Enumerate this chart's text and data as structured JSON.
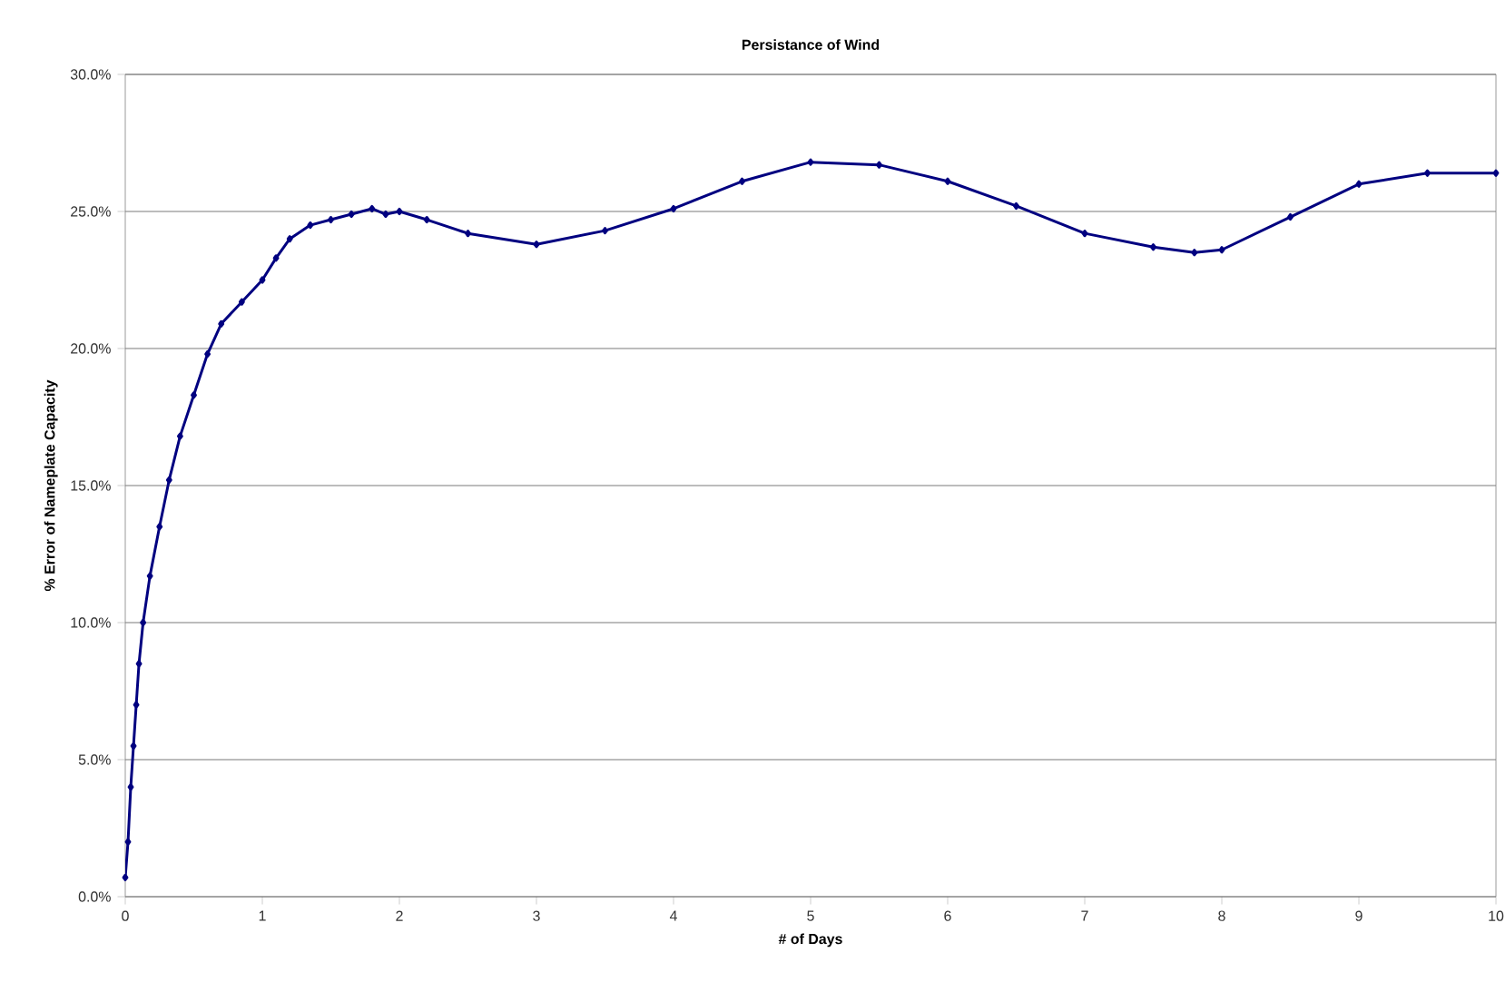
{
  "chart_data": {
    "type": "line",
    "title": "Persistance of Wind",
    "xlabel": "# of Days",
    "ylabel": "% Error of Nameplate Capacity",
    "x": [
      0,
      0.02,
      0.04,
      0.06,
      0.08,
      0.1,
      0.13,
      0.18,
      0.25,
      0.32,
      0.4,
      0.5,
      0.6,
      0.7,
      0.85,
      1.0,
      1.1,
      1.2,
      1.35,
      1.5,
      1.65,
      1.8,
      1.9,
      2.0,
      2.2,
      2.5,
      3.0,
      3.5,
      4.0,
      4.5,
      5.0,
      5.5,
      6.0,
      6.5,
      7.0,
      7.5,
      7.8,
      8.0,
      8.5,
      9.0,
      9.5,
      10
    ],
    "series": [
      {
        "color": "#000080",
        "values": [
          0.7,
          2.0,
          4.0,
          5.5,
          7.0,
          8.5,
          10.0,
          11.7,
          13.5,
          15.2,
          16.8,
          18.3,
          19.8,
          20.9,
          21.7,
          22.5,
          23.3,
          24.0,
          24.5,
          24.7,
          24.9,
          25.1,
          24.9,
          25.0,
          24.7,
          24.2,
          23.8,
          24.3,
          25.1,
          26.1,
          26.8,
          26.7,
          26.1,
          25.2,
          24.2,
          23.7,
          23.5,
          23.6,
          24.8,
          26.0,
          26.4,
          26.4
        ]
      }
    ],
    "xlim": [
      0,
      10
    ],
    "ylim": [
      0,
      30
    ],
    "xticks": [
      0,
      1,
      2,
      3,
      4,
      5,
      6,
      7,
      8,
      9,
      10
    ],
    "yticks": [
      {
        "value": 0,
        "label": "0.0%"
      },
      {
        "value": 5,
        "label": "5.0%"
      },
      {
        "value": 10,
        "label": "10.0%"
      },
      {
        "value": 15,
        "label": "15.0%"
      },
      {
        "value": 20,
        "label": "20.0%"
      },
      {
        "value": 25,
        "label": "25.0%"
      },
      {
        "value": 30,
        "label": "30.0%"
      }
    ],
    "grid": "y",
    "marker": "diamond",
    "line_style": "solid"
  }
}
